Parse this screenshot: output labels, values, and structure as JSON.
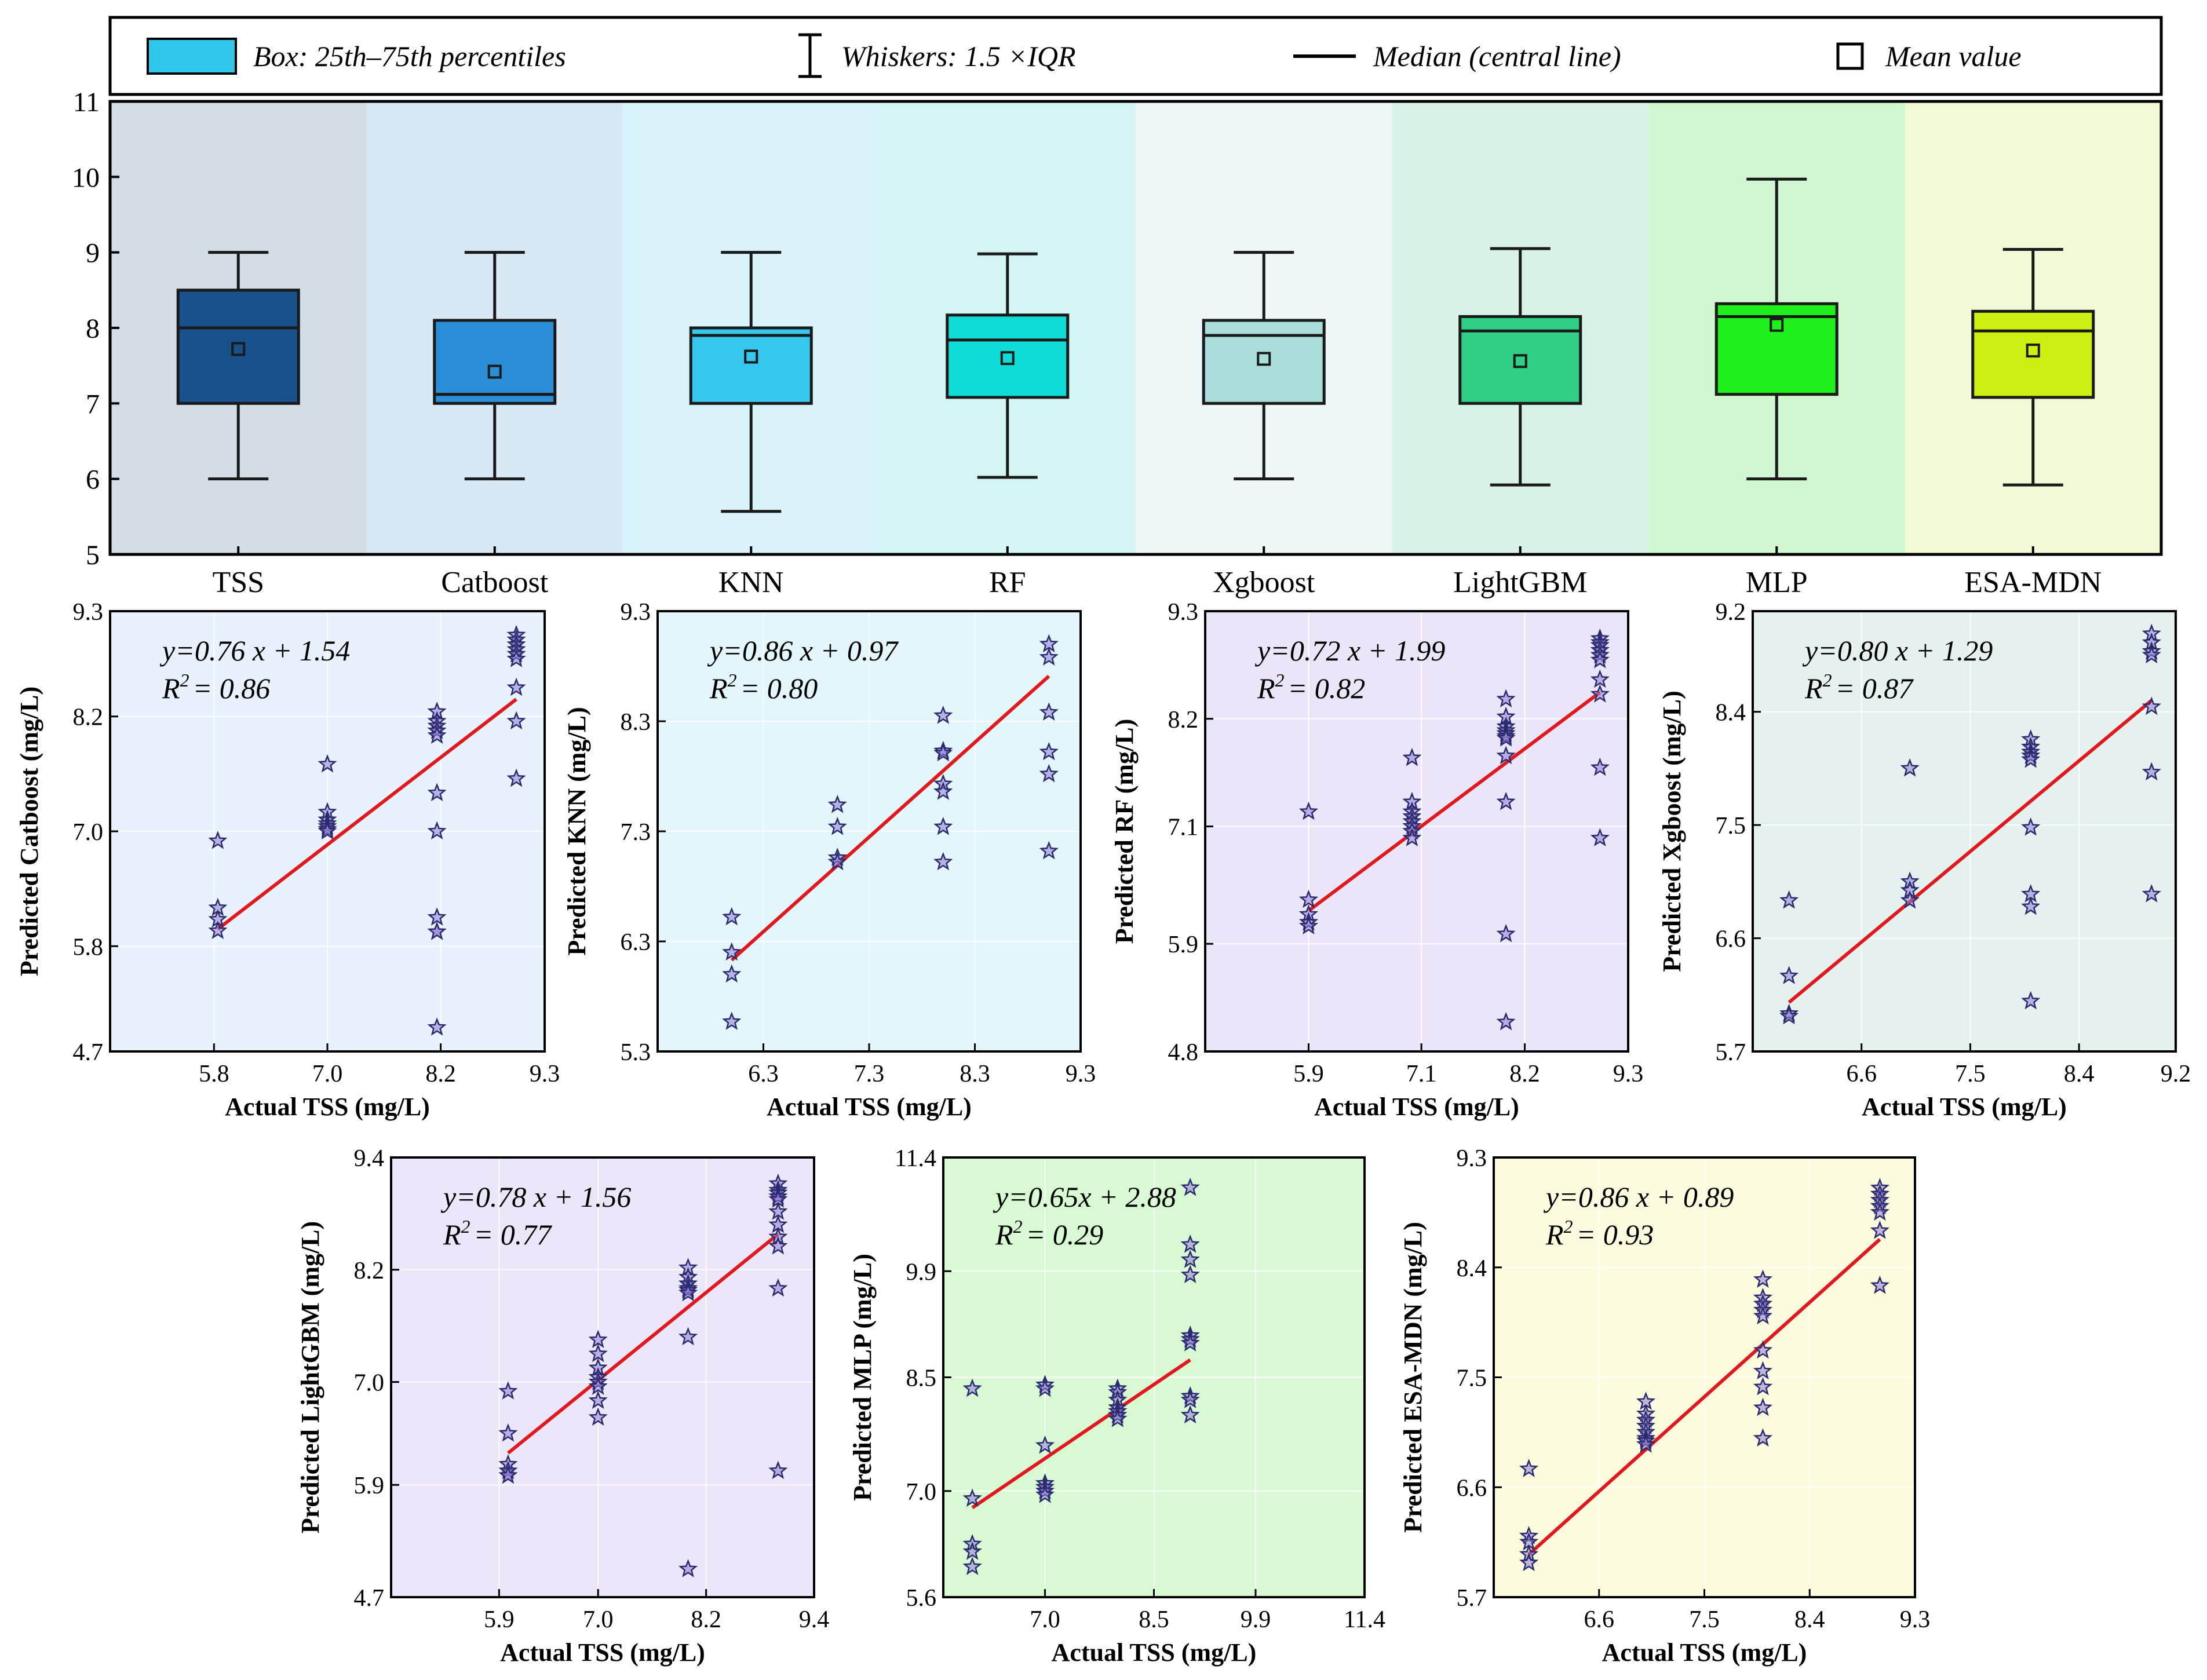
{
  "legend": {
    "box_label": "Box: 25th–75th percentiles",
    "whisker_label": "Whiskers: 1.5 ×IQR",
    "median_label": "Median (central line)",
    "mean_label": "Mean value"
  },
  "colors": {
    "regression_line": "#e0191e",
    "marker_stroke": "#2a2a6e",
    "marker_fill": "#8f7bd6",
    "box_outline": "#1a1a1a"
  },
  "chart_data": [
    {
      "type": "box",
      "title": "",
      "ylim": [
        5,
        11
      ],
      "yticks": [
        5,
        6,
        7,
        8,
        9,
        10,
        11
      ],
      "categories": [
        "TSS",
        "Catboost",
        "KNN",
        "RF",
        "Xgboost",
        "LightGBM",
        "MLP",
        "ESA-MDN"
      ],
      "series": [
        {
          "name": "TSS",
          "whisker_low": 6.0,
          "q1": 7.0,
          "median": 8.0,
          "q3": 8.5,
          "whisker_high": 9.0,
          "mean": 7.72,
          "color": "#17508a",
          "band": "#d3dde6"
        },
        {
          "name": "Catboost",
          "whisker_low": 6.0,
          "q1": 7.0,
          "median": 7.12,
          "q3": 8.1,
          "whisker_high": 9.0,
          "mean": 7.42,
          "color": "#2a8ed6",
          "band": "#d8e9f5"
        },
        {
          "name": "KNN",
          "whisker_low": 5.57,
          "q1": 7.0,
          "median": 7.9,
          "q3": 8.0,
          "whisker_high": 9.0,
          "mean": 7.62,
          "color": "#37c6ee",
          "band": "#d8f3f9"
        },
        {
          "name": "RF",
          "whisker_low": 6.02,
          "q1": 7.08,
          "median": 7.84,
          "q3": 8.17,
          "whisker_high": 8.98,
          "mean": 7.6,
          "color": "#0fdcd6",
          "band": "#d3f5f3"
        },
        {
          "name": "Xgboost",
          "whisker_low": 6.0,
          "q1": 7.0,
          "median": 7.9,
          "q3": 8.1,
          "whisker_high": 9.0,
          "mean": 7.59,
          "color": "#a8ddd9",
          "band": "#edf7f6"
        },
        {
          "name": "LightGBM",
          "whisker_low": 5.92,
          "q1": 7.0,
          "median": 7.96,
          "q3": 8.15,
          "whisker_high": 9.05,
          "mean": 7.56,
          "color": "#2fcf84",
          "band": "#d7f3e8"
        },
        {
          "name": "MLP",
          "whisker_low": 6.0,
          "q1": 7.12,
          "median": 8.15,
          "q3": 8.32,
          "whisker_high": 9.97,
          "mean": 8.04,
          "color": "#1ff01b",
          "band": "#d1f7cf"
        },
        {
          "name": "ESA-MDN",
          "whisker_low": 5.92,
          "q1": 7.08,
          "median": 7.96,
          "q3": 8.22,
          "whisker_high": 9.04,
          "mean": 7.7,
          "color": "#cdf012",
          "band": "#f0fad6"
        }
      ]
    },
    {
      "type": "scatter",
      "name": "Catboost",
      "xlabel": "Actual TSS (mg/L)",
      "ylabel": "Predicted Catboost (mg/L)",
      "equation": "y=0.76 x + 1.54",
      "r2_prefix": "R",
      "r2_sup": "2",
      "r2_value": "= 0.86",
      "xlim": [
        4.7,
        9.3
      ],
      "ylim": [
        4.7,
        9.3
      ],
      "xticks": [
        5.8,
        7.0,
        8.2,
        9.3
      ],
      "yticks": [
        4.7,
        5.8,
        7.0,
        8.2,
        9.3
      ],
      "line": {
        "slope": 0.76,
        "intercept": 1.54,
        "x": [
          5.84,
          9.0
        ]
      },
      "bg": "#e8f2fe",
      "x": [
        5.84,
        5.84,
        5.84,
        5.84,
        7.0,
        7.0,
        7.0,
        7.0,
        7.0,
        7.0,
        7.0,
        8.16,
        8.16,
        8.16,
        8.16,
        8.16,
        8.16,
        8.16,
        8.16,
        8.16,
        8.16,
        8.16,
        9.0,
        9.0,
        9.0,
        9.0,
        9.0,
        9.0,
        9.0,
        9.0,
        9.0
      ],
      "y": [
        6.9,
        6.2,
        6.08,
        5.96,
        7.7,
        7.2,
        7.12,
        7.08,
        7.05,
        7.02,
        7.0,
        8.25,
        8.15,
        8.1,
        8.05,
        8.0,
        7.4,
        7.0,
        6.1,
        5.95,
        5.95,
        4.95,
        9.05,
        9.0,
        8.95,
        8.9,
        8.85,
        8.8,
        8.5,
        8.15,
        7.55
      ]
    },
    {
      "type": "scatter",
      "name": "KNN",
      "xlabel": "Actual TSS (mg/L)",
      "ylabel": "Predicted KNN (mg/L)",
      "equation": "y=0.86 x + 0.97",
      "r2_prefix": "R",
      "r2_sup": "2",
      "r2_value": "= 0.80",
      "xlim": [
        5.3,
        9.3
      ],
      "ylim": [
        5.3,
        9.3
      ],
      "xticks": [
        6.3,
        7.3,
        8.3,
        9.3
      ],
      "yticks": [
        5.3,
        6.3,
        7.3,
        8.3,
        9.3
      ],
      "line": {
        "slope": 0.86,
        "intercept": 0.97,
        "x": [
          6.0,
          9.0
        ]
      },
      "bg": "#e2f6fb",
      "x": [
        6.0,
        6.0,
        6.0,
        6.0,
        7.0,
        7.0,
        7.0,
        7.0,
        8.0,
        8.0,
        8.0,
        8.0,
        8.0,
        8.0,
        8.0,
        9.0,
        9.0,
        9.0,
        9.0,
        9.0,
        9.0
      ],
      "y": [
        6.52,
        6.2,
        6.0,
        5.57,
        7.54,
        7.34,
        7.06,
        7.02,
        8.35,
        8.03,
        8.01,
        7.73,
        7.66,
        7.34,
        7.02,
        9.0,
        8.88,
        8.38,
        8.02,
        7.82,
        7.12
      ]
    },
    {
      "type": "scatter",
      "name": "RF",
      "xlabel": "Actual TSS (mg/L)",
      "ylabel": "Predicted RF (mg/L)",
      "equation": "y=0.72 x + 1.99",
      "r2_prefix": "R",
      "r2_sup": "2",
      "r2_value": "= 0.82",
      "xlim": [
        4.8,
        9.3
      ],
      "ylim": [
        4.8,
        9.3
      ],
      "xticks": [
        5.9,
        7.1,
        8.2,
        9.3
      ],
      "yticks": [
        4.8,
        5.9,
        7.1,
        8.2,
        9.3
      ],
      "line": {
        "slope": 0.72,
        "intercept": 1.99,
        "x": [
          5.9,
          9.0
        ]
      },
      "bg": "#ebe5fa",
      "x": [
        5.9,
        5.9,
        5.9,
        5.9,
        5.9,
        7.0,
        7.0,
        7.0,
        7.0,
        7.0,
        7.0,
        7.0,
        7.0,
        8.0,
        8.0,
        8.0,
        8.0,
        8.0,
        8.0,
        8.0,
        8.0,
        8.0,
        8.0,
        8.0,
        9.0,
        9.0,
        9.0,
        9.0,
        9.0,
        9.0,
        9.0,
        9.0,
        9.0,
        9.0
      ],
      "y": [
        7.25,
        6.35,
        6.2,
        6.12,
        6.08,
        7.8,
        7.35,
        7.25,
        7.2,
        7.15,
        7.1,
        7.05,
        6.98,
        8.4,
        8.22,
        8.12,
        8.08,
        8.05,
        8.02,
        8.0,
        7.82,
        7.35,
        6.0,
        5.1,
        9.02,
        8.98,
        8.95,
        8.9,
        8.85,
        8.8,
        8.6,
        8.45,
        7.7,
        6.98
      ]
    },
    {
      "type": "scatter",
      "name": "Xgboost",
      "xlabel": "Actual TSS (mg/L)",
      "ylabel": "Predicted Xgboost (mg/L)",
      "equation": "y=0.80 x + 1.29",
      "r2_prefix": "R",
      "r2_sup": "2",
      "r2_value": "= 0.87",
      "xlim": [
        5.7,
        9.2
      ],
      "ylim": [
        5.7,
        9.2
      ],
      "xticks": [
        6.6,
        7.5,
        8.4,
        9.2
      ],
      "yticks": [
        5.7,
        6.6,
        7.5,
        8.4,
        9.2
      ],
      "line": {
        "slope": 0.8,
        "intercept": 1.29,
        "x": [
          6.0,
          9.0
        ]
      },
      "bg": "#e5f1ee",
      "x": [
        6.0,
        6.0,
        6.0,
        6.0,
        7.0,
        7.0,
        7.0,
        7.0,
        8.0,
        8.0,
        8.0,
        8.0,
        8.0,
        8.0,
        8.0,
        8.0,
        8.0,
        9.0,
        9.0,
        9.0,
        9.0,
        9.0,
        9.0,
        9.0
      ],
      "y": [
        6.9,
        6.3,
        6.0,
        5.98,
        7.95,
        7.05,
        6.98,
        6.9,
        8.18,
        8.12,
        8.08,
        8.05,
        8.02,
        7.48,
        6.95,
        6.85,
        6.1,
        9.02,
        8.95,
        8.88,
        8.85,
        8.44,
        7.92,
        6.95
      ]
    },
    {
      "type": "scatter",
      "name": "LightGBM",
      "xlabel": "Actual TSS (mg/L)",
      "ylabel": "Predicted LightGBM (mg/L)",
      "equation": "y=0.78 x + 1.56",
      "r2_prefix": "R",
      "r2_sup": "2",
      "r2_value": "= 0.77",
      "xlim": [
        4.7,
        9.4
      ],
      "ylim": [
        4.7,
        9.4
      ],
      "xticks": [
        5.9,
        7.0,
        8.2,
        9.4
      ],
      "yticks": [
        4.7,
        5.9,
        7.0,
        8.2,
        9.4
      ],
      "line": {
        "slope": 0.78,
        "intercept": 1.56,
        "x": [
          6.0,
          9.0
        ]
      },
      "bg": "#ece6fa",
      "x": [
        6.0,
        6.0,
        6.0,
        6.0,
        6.0,
        6.0,
        7.0,
        7.0,
        7.0,
        7.0,
        7.0,
        7.0,
        7.0,
        7.0,
        8.0,
        8.0,
        8.0,
        8.0,
        8.0,
        8.0,
        8.0,
        8.0,
        9.0,
        9.0,
        9.0,
        9.0,
        9.0,
        9.0,
        9.0,
        9.0,
        9.0,
        9.0,
        9.0
      ],
      "y": [
        6.9,
        6.45,
        6.12,
        6.05,
        6.0,
        6.0,
        7.45,
        7.3,
        7.15,
        7.05,
        7.0,
        6.95,
        6.8,
        6.62,
        8.22,
        8.12,
        8.05,
        8.0,
        7.98,
        7.95,
        7.48,
        5.0,
        9.12,
        9.05,
        9.02,
        8.98,
        8.95,
        8.82,
        8.68,
        8.55,
        8.45,
        8.0,
        6.05
      ]
    },
    {
      "type": "scatter",
      "name": "MLP",
      "xlabel": "Actual TSS (mg/L)",
      "ylabel": "Predicted MLP (mg/L)",
      "equation": "y=0.65x + 2.88",
      "r2_prefix": "R",
      "r2_sup": "2",
      "r2_value": "= 0.29",
      "xlim": [
        5.6,
        11.4
      ],
      "ylim": [
        5.6,
        11.4
      ],
      "xticks": [
        7.0,
        8.5,
        9.9,
        11.4
      ],
      "yticks": [
        5.6,
        7.0,
        8.5,
        9.9,
        11.4
      ],
      "line": {
        "slope": 0.65,
        "intercept": 2.88,
        "x": [
          6.0,
          9.0
        ]
      },
      "bg": "#d7fad2",
      "x": [
        6.0,
        6.0,
        6.0,
        6.0,
        6.0,
        7.0,
        7.0,
        7.0,
        7.0,
        7.0,
        7.0,
        7.0,
        8.0,
        8.0,
        8.0,
        8.0,
        8.0,
        8.0,
        8.0,
        9.0,
        9.0,
        9.0,
        9.0,
        9.0,
        9.0,
        9.0,
        9.0,
        9.0,
        9.0
      ],
      "y": [
        8.35,
        6.9,
        6.3,
        6.2,
        6.0,
        8.4,
        8.35,
        7.6,
        7.1,
        7.05,
        7.0,
        6.95,
        8.35,
        8.3,
        8.2,
        8.1,
        8.05,
        8.0,
        7.95,
        11.0,
        10.25,
        10.05,
        9.85,
        9.05,
        9.0,
        8.95,
        8.25,
        8.2,
        8.0
      ]
    },
    {
      "type": "scatter",
      "name": "ESA-MDN",
      "xlabel": "Actual TSS (mg/L)",
      "ylabel": "Predicted ESA-MDN (mg/L)",
      "equation": "y=0.86 x + 0.89",
      "r2_prefix": "R",
      "r2_sup": "2",
      "r2_value": "= 0.93",
      "xlim": [
        5.7,
        9.3
      ],
      "ylim": [
        5.7,
        9.3
      ],
      "xticks": [
        6.6,
        7.5,
        8.4,
        9.3
      ],
      "yticks": [
        5.7,
        6.6,
        7.5,
        8.4,
        9.3
      ],
      "line": {
        "slope": 0.86,
        "intercept": 0.89,
        "x": [
          6.0,
          9.0
        ]
      },
      "bg": "#fdfbde",
      "x": [
        6.0,
        6.0,
        6.0,
        6.0,
        6.0,
        7.0,
        7.0,
        7.0,
        7.0,
        7.0,
        7.0,
        7.0,
        7.0,
        8.0,
        8.0,
        8.0,
        8.0,
        8.0,
        8.0,
        8.0,
        8.0,
        8.0,
        8.0,
        9.0,
        9.0,
        9.0,
        9.0,
        9.0,
        9.0,
        9.0
      ],
      "y": [
        6.75,
        6.2,
        6.15,
        6.05,
        5.98,
        7.3,
        7.2,
        7.15,
        7.1,
        7.05,
        7.0,
        6.98,
        6.95,
        8.3,
        8.15,
        8.1,
        8.05,
        8.0,
        7.72,
        7.55,
        7.42,
        7.25,
        7.0,
        9.05,
        9.0,
        8.95,
        8.9,
        8.85,
        8.7,
        8.25
      ]
    }
  ]
}
